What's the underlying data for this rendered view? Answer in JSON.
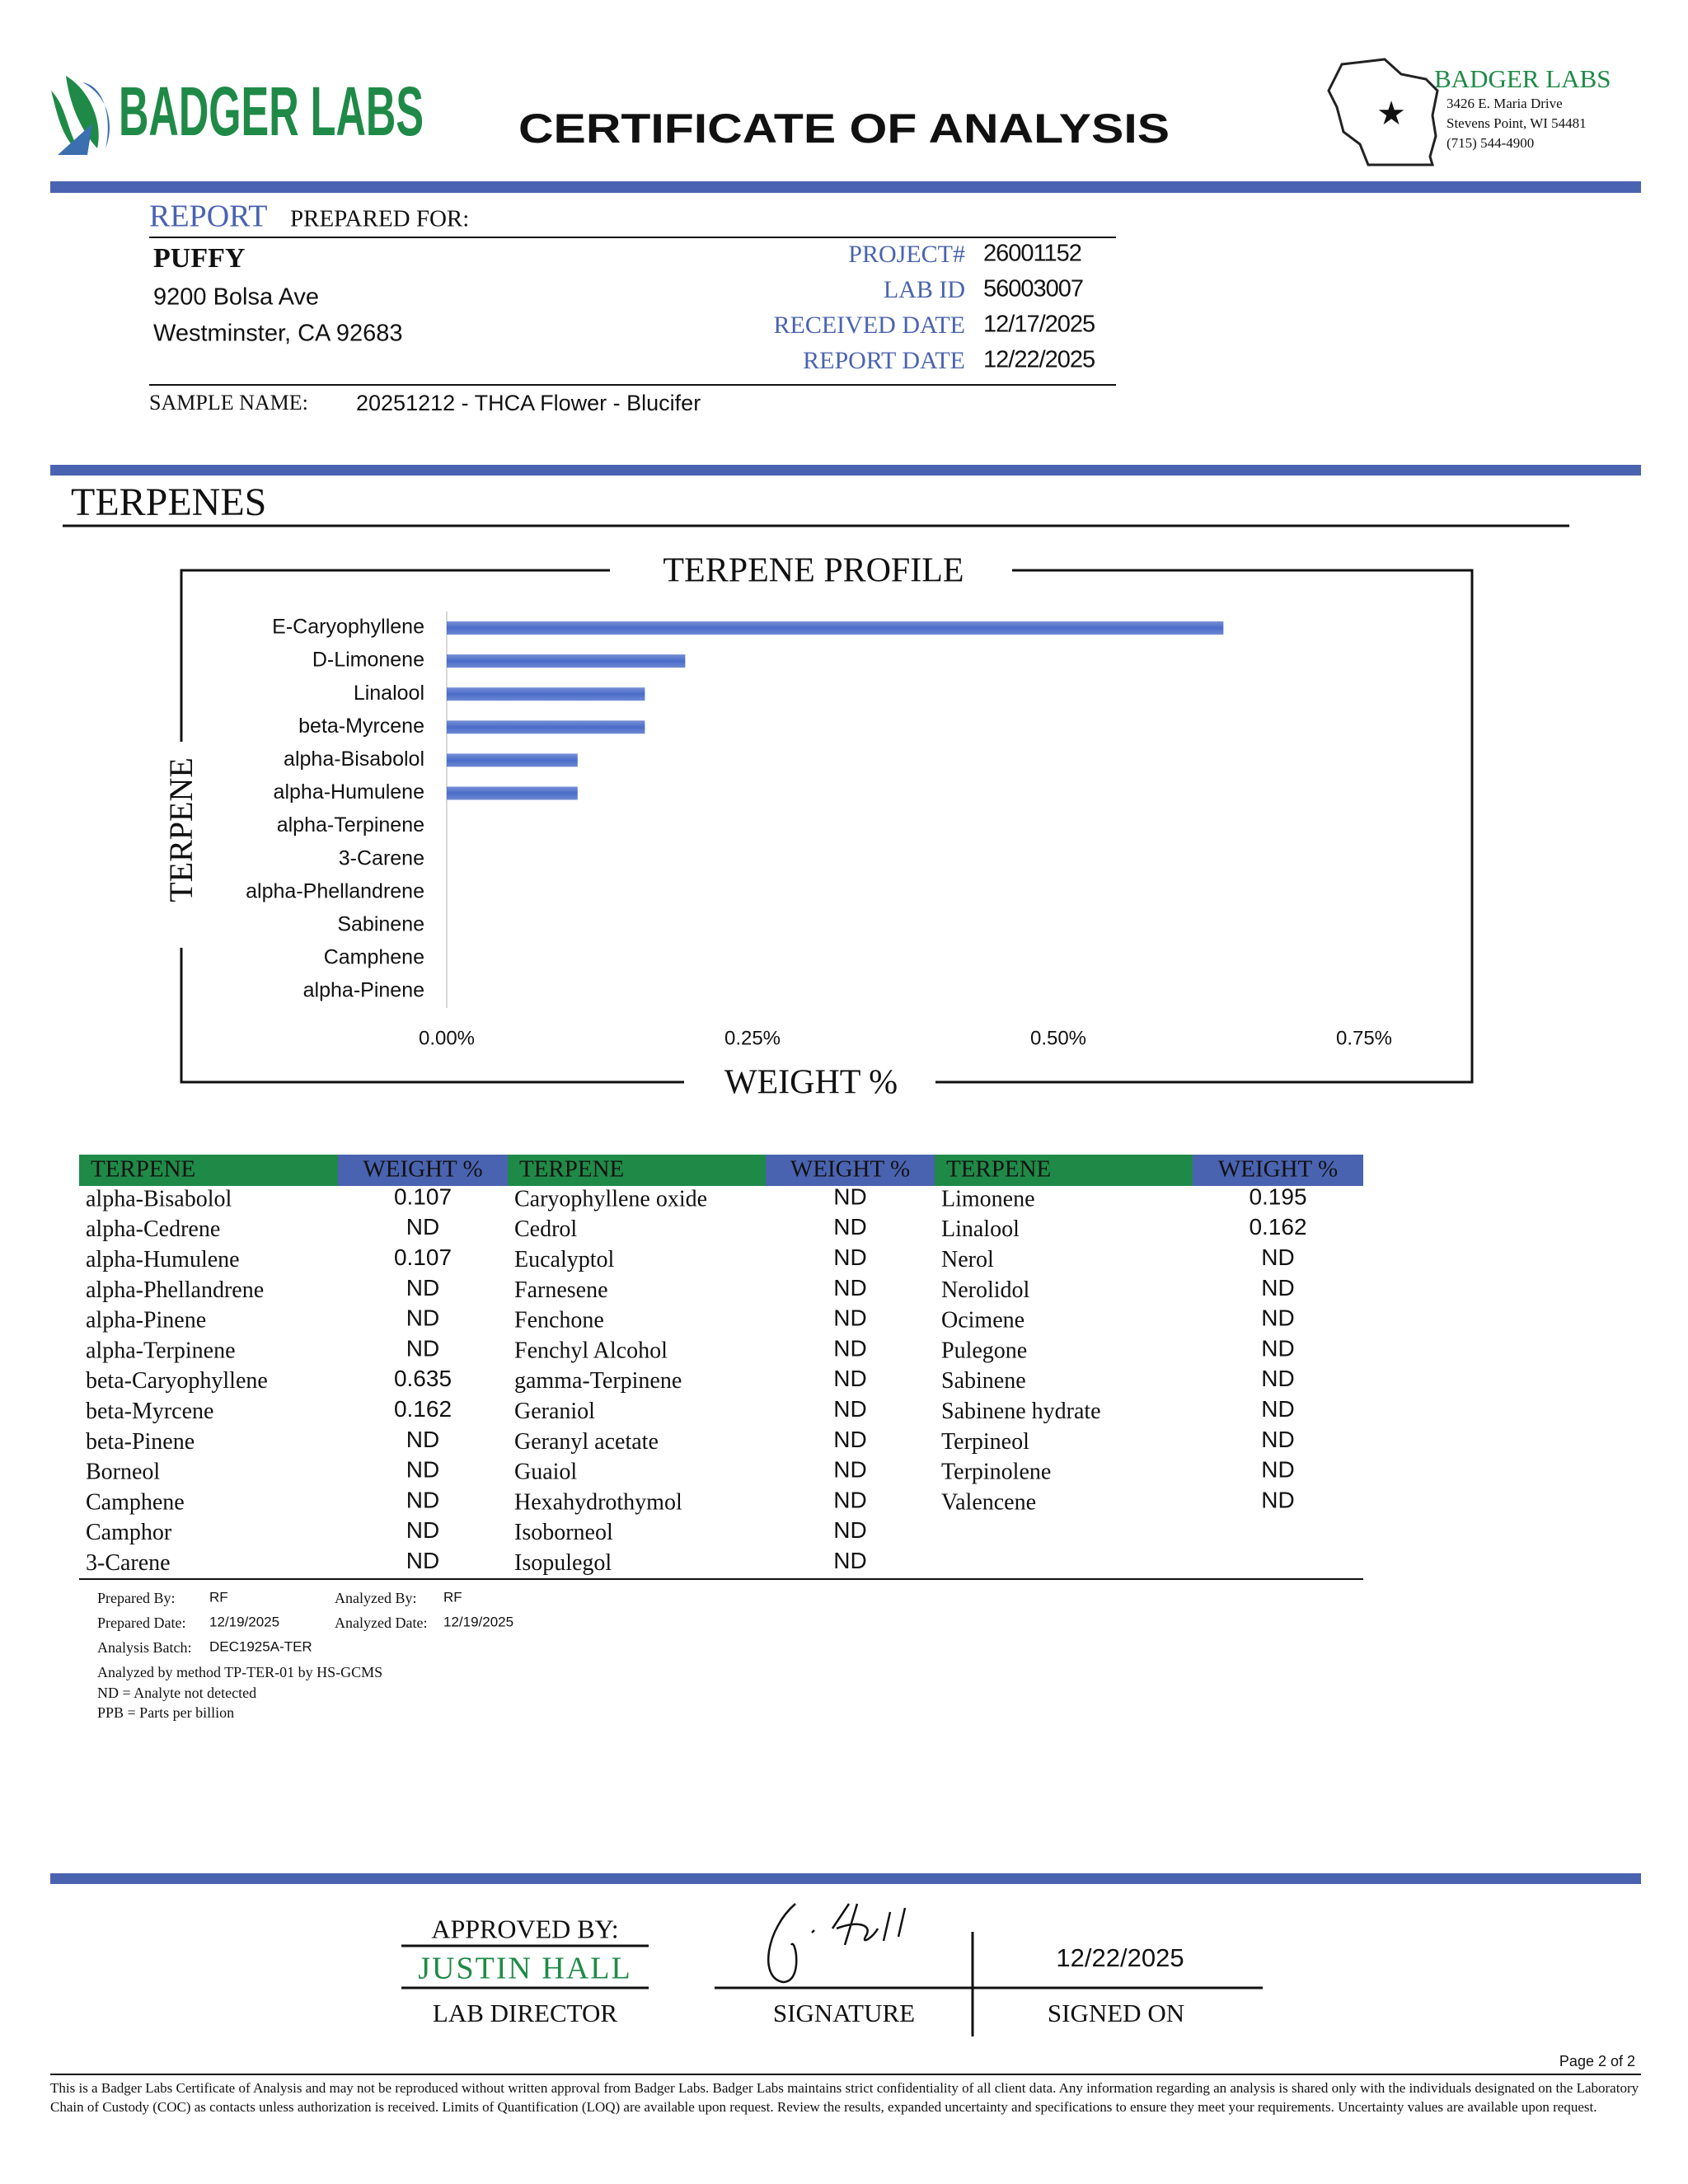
{
  "header": {
    "logo_text": "BADGER LABS",
    "title": "CERTIFICATE OF ANALYSIS",
    "lab_name": "BADGER LABS",
    "address": [
      "3426 E. Maria Drive",
      "Stevens Point, WI 54481",
      "(715) 544-4900"
    ]
  },
  "report_label": {
    "lead": "REPORT",
    "rest": "PREPARED FOR:"
  },
  "client": {
    "name": "PUFFY",
    "address": [
      "9200 Bolsa Ave",
      "Westminster, CA 92683"
    ]
  },
  "report_fields": [
    {
      "label": "PROJECT#",
      "value": "26001152"
    },
    {
      "label": "LAB ID",
      "value": "56003007"
    },
    {
      "label": "RECEIVED DATE",
      "value": "12/17/2025"
    },
    {
      "label": "REPORT DATE",
      "value": "12/22/2025"
    }
  ],
  "sample": {
    "label": "SAMPLE NAME:",
    "value": "20251212 - THCA Flower - Blucifer"
  },
  "section_title": "TERPENES",
  "chart_data": {
    "type": "hbar",
    "title": "TERPENE PROFILE",
    "x_label": "WEIGHT %",
    "y_label": "TERPENE",
    "categories": [
      "E-Caryophyllene",
      "D-Limonene",
      "Linalool",
      "beta-Myrcene",
      "alpha-Bisabolol",
      "alpha-Humulene",
      "alpha-Terpinene",
      "3-Carene",
      "alpha-Phellandrene",
      "Sabinene",
      "Camphene",
      "alpha-Pinene"
    ],
    "values": [
      0.635,
      0.195,
      0.162,
      0.162,
      0.107,
      0.107,
      0,
      0,
      0,
      0,
      0,
      0
    ],
    "color": "#4a6cc8",
    "xlim": [
      0,
      0.75
    ],
    "xticks": [
      {
        "value": 0,
        "label": "0.00%"
      },
      {
        "value": 0.25,
        "label": "0.25%"
      },
      {
        "value": 0.5,
        "label": "0.50%"
      },
      {
        "value": 0.75,
        "label": "0.75%"
      }
    ],
    "grid": false
  },
  "table": {
    "headers": [
      "TERPENE",
      "WEIGHT %",
      "TERPENE",
      "WEIGHT %",
      "TERPENE",
      "WEIGHT %"
    ],
    "groups": [
      [
        [
          "alpha-Bisabolol",
          0.107
        ],
        [
          "alpha-Cedrene",
          "ND"
        ],
        [
          "alpha-Humulene",
          0.107
        ],
        [
          "alpha-Phellandrene",
          "ND"
        ],
        [
          "alpha-Pinene",
          "ND"
        ],
        [
          "alpha-Terpinene",
          "ND"
        ],
        [
          "beta-Caryophyllene",
          0.635
        ],
        [
          "beta-Myrcene",
          0.162
        ],
        [
          "beta-Pinene",
          "ND"
        ],
        [
          "Borneol",
          "ND"
        ],
        [
          "Camphene",
          "ND"
        ],
        [
          "Camphor",
          "ND"
        ],
        [
          "3-Carene",
          "ND"
        ]
      ],
      [
        [
          "Caryophyllene oxide",
          "ND"
        ],
        [
          "Cedrol",
          "ND"
        ],
        [
          "Eucalyptol",
          "ND"
        ],
        [
          "Farnesene",
          "ND"
        ],
        [
          "Fenchone",
          "ND"
        ],
        [
          "Fenchyl Alcohol",
          "ND"
        ],
        [
          "gamma-Terpinene",
          "ND"
        ],
        [
          "Geraniol",
          "ND"
        ],
        [
          "Geranyl acetate",
          "ND"
        ],
        [
          "Guaiol",
          "ND"
        ],
        [
          "Hexahydrothymol",
          "ND"
        ],
        [
          "Isoborneol",
          "ND"
        ],
        [
          "Isopulegol",
          "ND"
        ]
      ],
      [
        [
          "Limonene",
          0.195
        ],
        [
          "Linalool",
          0.162
        ],
        [
          "Nerol",
          "ND"
        ],
        [
          "Nerolidol",
          "ND"
        ],
        [
          "Ocimene",
          "ND"
        ],
        [
          "Pulegone",
          "ND"
        ],
        [
          "Sabinene",
          "ND"
        ],
        [
          "Sabinene hydrate",
          "ND"
        ],
        [
          "Terpineol",
          "ND"
        ],
        [
          "Terpinolene",
          "ND"
        ],
        [
          "Valencene",
          "ND"
        ]
      ]
    ]
  },
  "notes": {
    "prepared_by_label": "Prepared By:",
    "prepared_by": "RF",
    "analyzed_by_label": "Analyzed By:",
    "analyzed_by": "RF",
    "prepared_date_label": "Prepared Date:",
    "prepared_date": "12/19/2025",
    "analyzed_date_label": "Analyzed Date:",
    "analyzed_date": "12/19/2025",
    "batch_label": "Analysis Batch:",
    "batch": "DEC1925A-TER",
    "lines": [
      "Analyzed by method TP-TER-01 by HS-GCMS",
      "ND = Analyte not detected",
      "PPB = Parts per billion"
    ]
  },
  "approval": {
    "approved_by": "APPROVED BY:",
    "name": "JUSTIN HALL",
    "role": "LAB DIRECTOR",
    "signature_label": "SIGNATURE",
    "signed_date": "12/22/2025",
    "signed_on_label": "SIGNED ON"
  },
  "page": "Page 2 of 2",
  "disclaimer": "This is a Badger Labs Certificate of Analysis and may not be reproduced without written approval from Badger Labs. Badger Labs maintains strict confidentiality of all client data. Any information regarding an analysis is shared only with the individuals designated on the Laboratory Chain of Custody (COC) as contacts unless authorization is received. Limits of Quantification (LOQ) are available upon request. Review the results, expanded uncertainty and specifications to ensure they meet your requirements. Uncertainty values are available upon request."
}
